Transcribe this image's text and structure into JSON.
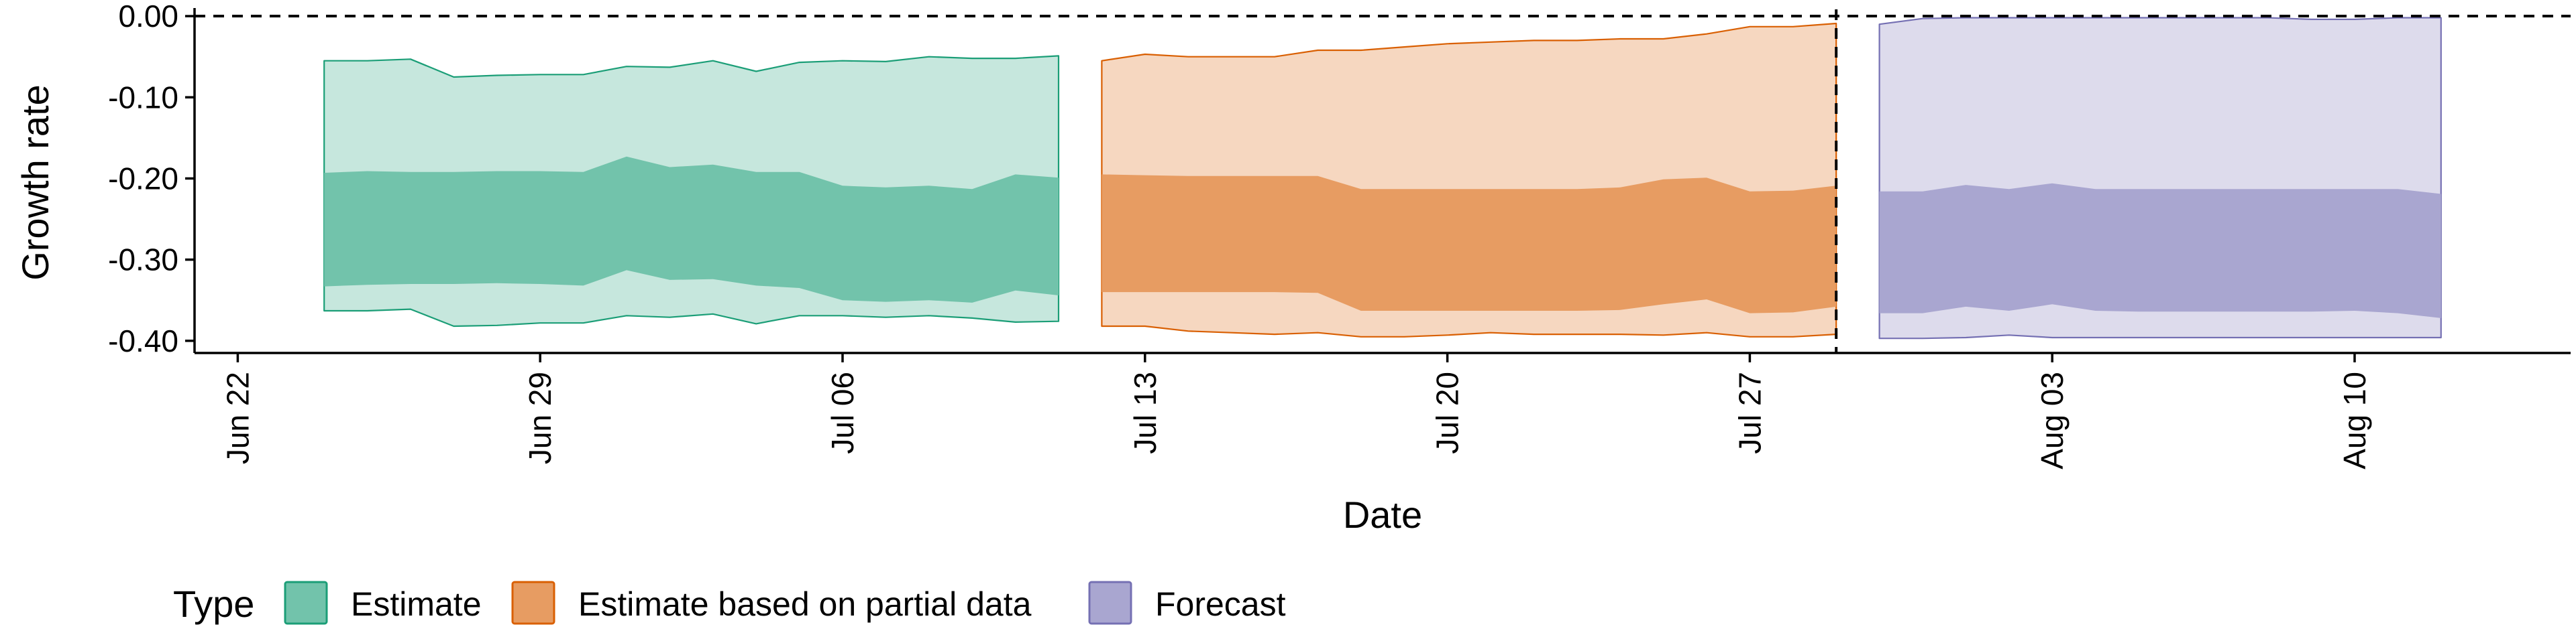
{
  "chart_data": {
    "type": "area",
    "title": "",
    "xlabel": "Date",
    "ylabel": "Growth rate",
    "x_ticks": [
      "Jun 22",
      "Jun 29",
      "Jul 06",
      "Jul 13",
      "Jul 20",
      "Jul 27",
      "Aug 03",
      "Aug 10"
    ],
    "y_ticks": [
      "0.00",
      "-0.10",
      "-0.20",
      "-0.30",
      "-0.40"
    ],
    "ylim": [
      -0.415,
      0.005
    ],
    "xlim": [
      "2020-06-21",
      "2020-08-15"
    ],
    "hline": 0,
    "vline": "2020-07-29",
    "grid": false,
    "legend": {
      "title": "Type",
      "position": "bottom-left",
      "entries": [
        "Estimate",
        "Estimate based on partial data",
        "Forecast"
      ]
    },
    "series": [
      {
        "name": "Estimate",
        "color": "#1b9e77",
        "x": [
          "2020-06-24",
          "2020-06-25",
          "2020-06-26",
          "2020-06-27",
          "2020-06-28",
          "2020-06-29",
          "2020-06-30",
          "2020-07-01",
          "2020-07-02",
          "2020-07-03",
          "2020-07-04",
          "2020-07-05",
          "2020-07-06",
          "2020-07-07",
          "2020-07-08",
          "2020-07-09",
          "2020-07-10",
          "2020-07-11"
        ],
        "outer_upper": [
          -0.055,
          -0.055,
          -0.053,
          -0.075,
          -0.073,
          -0.072,
          -0.072,
          -0.062,
          -0.063,
          -0.055,
          -0.068,
          -0.057,
          -0.055,
          -0.056,
          -0.05,
          -0.052,
          -0.052,
          -0.049
        ],
        "inner_upper": [
          -0.193,
          -0.191,
          -0.192,
          -0.192,
          -0.191,
          -0.191,
          -0.192,
          -0.173,
          -0.186,
          -0.183,
          -0.192,
          -0.192,
          -0.209,
          -0.211,
          -0.209,
          -0.213,
          -0.195,
          -0.199
        ],
        "inner_lower": [
          -0.333,
          -0.331,
          -0.33,
          -0.33,
          -0.329,
          -0.33,
          -0.332,
          -0.313,
          -0.325,
          -0.324,
          -0.332,
          -0.335,
          -0.35,
          -0.352,
          -0.35,
          -0.353,
          -0.338,
          -0.344
        ],
        "outer_lower": [
          -0.363,
          -0.363,
          -0.361,
          -0.382,
          -0.381,
          -0.378,
          -0.378,
          -0.369,
          -0.371,
          -0.367,
          -0.379,
          -0.369,
          -0.369,
          -0.371,
          -0.369,
          -0.372,
          -0.377,
          -0.376
        ]
      },
      {
        "name": "Estimate based on partial data",
        "color": "#d95f02",
        "x": [
          "2020-07-12",
          "2020-07-13",
          "2020-07-14",
          "2020-07-15",
          "2020-07-16",
          "2020-07-17",
          "2020-07-18",
          "2020-07-19",
          "2020-07-20",
          "2020-07-21",
          "2020-07-22",
          "2020-07-23",
          "2020-07-24",
          "2020-07-25",
          "2020-07-26",
          "2020-07-27",
          "2020-07-28",
          "2020-07-29"
        ],
        "outer_upper": [
          -0.055,
          -0.047,
          -0.05,
          -0.05,
          -0.05,
          -0.042,
          -0.042,
          -0.038,
          -0.034,
          -0.032,
          -0.03,
          -0.03,
          -0.028,
          -0.028,
          -0.022,
          -0.013,
          -0.013,
          -0.009
        ],
        "inner_upper": [
          -0.195,
          -0.196,
          -0.197,
          -0.197,
          -0.197,
          -0.197,
          -0.213,
          -0.213,
          -0.213,
          -0.213,
          -0.213,
          -0.213,
          -0.211,
          -0.201,
          -0.199,
          -0.216,
          -0.215,
          -0.209
        ],
        "inner_lower": [
          -0.34,
          -0.34,
          -0.34,
          -0.34,
          -0.34,
          -0.341,
          -0.363,
          -0.363,
          -0.363,
          -0.363,
          -0.363,
          -0.363,
          -0.362,
          -0.355,
          -0.349,
          -0.366,
          -0.365,
          -0.358
        ],
        "outer_lower": [
          -0.382,
          -0.382,
          -0.388,
          -0.39,
          -0.392,
          -0.39,
          -0.395,
          -0.395,
          -0.393,
          -0.39,
          -0.392,
          -0.392,
          -0.392,
          -0.393,
          -0.39,
          -0.395,
          -0.395,
          -0.392
        ]
      },
      {
        "name": "Forecast",
        "color": "#7570b3",
        "x": [
          "2020-07-30",
          "2020-07-31",
          "2020-08-01",
          "2020-08-02",
          "2020-08-03",
          "2020-08-04",
          "2020-08-05",
          "2020-08-06",
          "2020-08-07",
          "2020-08-08",
          "2020-08-09",
          "2020-08-10",
          "2020-08-11",
          "2020-08-12"
        ],
        "outer_upper": [
          -0.01,
          -0.003,
          -0.002,
          -0.002,
          -0.002,
          -0.002,
          -0.002,
          -0.002,
          -0.002,
          -0.002,
          -0.004,
          -0.004,
          -0.002,
          -0.002
        ],
        "inner_upper": [
          -0.216,
          -0.216,
          -0.208,
          -0.213,
          -0.206,
          -0.213,
          -0.213,
          -0.213,
          -0.213,
          -0.213,
          -0.213,
          -0.213,
          -0.213,
          -0.219
        ],
        "inner_lower": [
          -0.366,
          -0.366,
          -0.358,
          -0.363,
          -0.355,
          -0.363,
          -0.364,
          -0.364,
          -0.364,
          -0.364,
          -0.364,
          -0.363,
          -0.366,
          -0.372
        ],
        "outer_lower": [
          -0.397,
          -0.397,
          -0.396,
          -0.393,
          -0.396,
          -0.396,
          -0.396,
          -0.396,
          -0.396,
          -0.396,
          -0.396,
          -0.396,
          -0.396,
          -0.396
        ]
      }
    ]
  }
}
